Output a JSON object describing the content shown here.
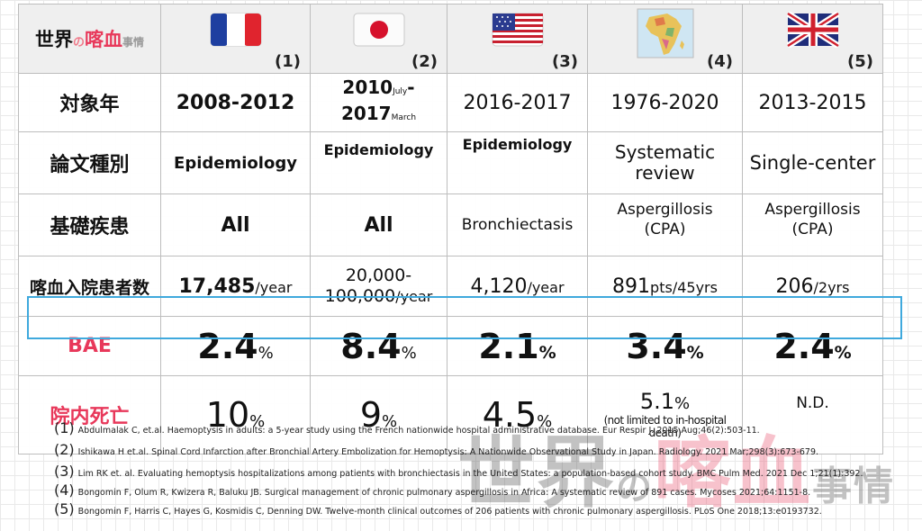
{
  "logo": {
    "part1": "世界",
    "part2": "の",
    "part3": "喀血",
    "part4": "事情"
  },
  "columns": [
    {
      "num": "(1)",
      "flag": "france-flag-icon"
    },
    {
      "num": "(2)",
      "flag": "japan-flag-icon"
    },
    {
      "num": "(3)",
      "flag": "usa-flag-icon"
    },
    {
      "num": "(4)",
      "flag": "africa-map-icon"
    },
    {
      "num": "(5)",
      "flag": "uk-flag-icon"
    }
  ],
  "rows": {
    "year": {
      "label": "対象年",
      "c1": "2008-2012",
      "c2a": "2010",
      "c2a_sub": "July",
      "c2a_dash": "-",
      "c2b": "2017",
      "c2b_sub": "March",
      "c3": "2016-2017",
      "c4": "1976-2020",
      "c5": "2013-2015"
    },
    "type": {
      "label": "論文種別",
      "c1": "Epidemiology",
      "c2": "Epidemiology",
      "c3": "Epidemiology",
      "c4a": "Systematic",
      "c4b": "review",
      "c5": "Single-center"
    },
    "disease": {
      "label": "基礎疾患",
      "c1": "All",
      "c2": "All",
      "c3": "Bronchiectasis",
      "c4a": "Aspergillosis",
      "c4b": "(CPA)",
      "c5a": "Aspergillosis",
      "c5b": "(CPA)"
    },
    "admissions": {
      "label": "喀血入院患者数",
      "c1": "17,485",
      "c1_unit": "/year",
      "c2a": "20,000-",
      "c2b": "100,000",
      "c2_unit": "/year",
      "c3": "4,120",
      "c3_unit": "/year",
      "c4": "891",
      "c4_unit": "pts/45yrs",
      "c5": "206",
      "c5_unit": "/2yrs"
    },
    "bae": {
      "label": "BAE",
      "c1": "2.4",
      "c2": "8.4",
      "c3": "2.1",
      "c4": "3.4",
      "c5": "2.4",
      "pct": "%"
    },
    "mortality": {
      "label": "院内死亡",
      "c1": "10",
      "c2": "9",
      "c3": "4.5",
      "c4": "5.1",
      "c4_note_a": "(not limited to in-hospital",
      "c4_note_b": "death)",
      "c5": "N.D.",
      "pct": "%"
    }
  },
  "references": [
    {
      "num": "(1)",
      "text": "Abdulmalak C, et.al. Haemoptysis in adults: a 5-year study using the French nationwide hospital administrative database. Eur Respir J. 2015 Aug;46(2):503-11."
    },
    {
      "num": "(2)",
      "text": "Ishikawa H et.al. Spinal Cord Infarction after Bronchial Artery Embolization for Hemoptysis: A Nationwide Observational Study in Japan. Radiology. 2021 Mar;298(3):673-679."
    },
    {
      "num": "(3)",
      "text": "Lim RK et. al. Evaluating hemoptysis hospitalizations among patients with bronchiectasis in the United States: a population-based cohort study. BMC Pulm Med. 2021 Dec 1;21(1):392."
    },
    {
      "num": "(4)",
      "text": "Bongomin F, Olum R, Kwizera R, Baluku JB. Surgical management of chronic pulmonary aspergillosis in Africa: A systematic review of 891 cases. Mycoses 2021;64:1151-8."
    },
    {
      "num": "(5)",
      "text": "Bongomin F, Harris C, Hayes G, Kosmidis C, Denning DW. Twelve-month clinical outcomes of 206 patients with chronic pulmonary aspergillosis. PLoS One 2018;13:e0193732."
    }
  ],
  "colors": {
    "accent_red": "#e8385a",
    "highlight_blue": "#3fa9dd"
  }
}
